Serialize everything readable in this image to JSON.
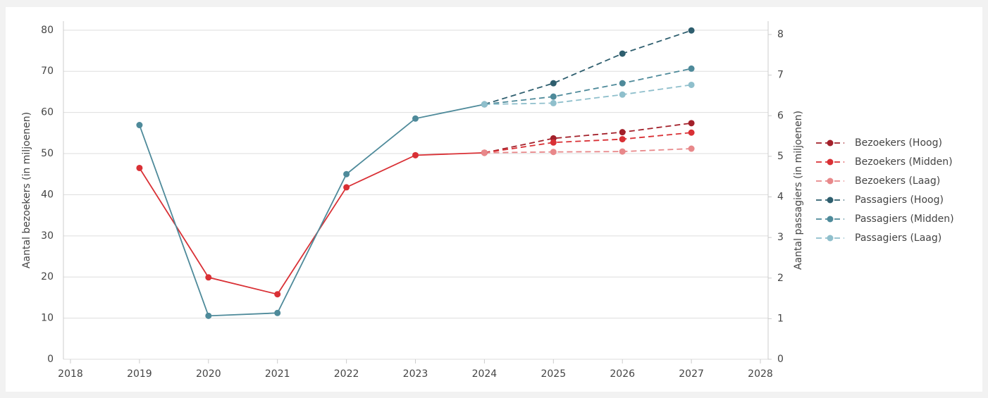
{
  "chart_data": {
    "type": "line",
    "y_label": "Aantal bezoekers (in miljoenen)",
    "y2_label": "Aantal passagiers (in miljoenen)",
    "x": [
      2019,
      2020,
      2021,
      2022,
      2023,
      2024,
      2025,
      2026,
      2027
    ],
    "xlim": [
      2018,
      2028
    ],
    "xticks": [
      2018,
      2019,
      2020,
      2021,
      2022,
      2023,
      2024,
      2025,
      2026,
      2027,
      2028
    ],
    "ylim": [
      0,
      82.2
    ],
    "yticks": [
      0,
      10,
      20,
      30,
      40,
      50,
      60,
      70,
      80
    ],
    "y2lim": [
      0,
      8.33
    ],
    "y2ticks": [
      0,
      1,
      2,
      3,
      4,
      5,
      6,
      7,
      8
    ],
    "grid": true,
    "legend": "right",
    "series": [
      {
        "color": "#d93035",
        "dashed": false,
        "axis": "y",
        "values": [
          46.5,
          19.9,
          15.8,
          41.8,
          49.6,
          50.2,
          null,
          null,
          null
        ]
      },
      {
        "color": "#4e8a9a",
        "dashed": false,
        "axis": "y2",
        "values": [
          5.77,
          1.07,
          1.14,
          4.56,
          5.93,
          6.28,
          null,
          null,
          null
        ]
      },
      {
        "name": "Bezoekers (Hoog)",
        "color": "#a3202a",
        "dashed": true,
        "axis": "y",
        "values": [
          null,
          null,
          null,
          null,
          null,
          50.2,
          53.7,
          55.2,
          57.4
        ]
      },
      {
        "name": "Bezoekers (Midden)",
        "color": "#d93035",
        "dashed": true,
        "axis": "y",
        "values": [
          null,
          null,
          null,
          null,
          null,
          50.2,
          52.7,
          53.5,
          55.1
        ]
      },
      {
        "name": "Bezoekers (Laag)",
        "color": "#e8888a",
        "dashed": true,
        "axis": "y",
        "values": [
          null,
          null,
          null,
          null,
          null,
          50.2,
          50.4,
          50.5,
          51.2
        ]
      },
      {
        "name": "Passagiers (Hoog)",
        "color": "#2e5e6e",
        "dashed": true,
        "axis": "y2",
        "values": [
          null,
          null,
          null,
          null,
          null,
          6.28,
          6.8,
          7.53,
          8.1
        ]
      },
      {
        "name": "Passagiers (Midden)",
        "color": "#4e8a9a",
        "dashed": true,
        "axis": "y2",
        "values": [
          null,
          null,
          null,
          null,
          null,
          6.28,
          6.47,
          6.8,
          7.16
        ]
      },
      {
        "name": "Passagiers (Laag)",
        "color": "#8fbfcc",
        "dashed": true,
        "axis": "y2",
        "values": [
          null,
          null,
          null,
          null,
          null,
          6.28,
          6.31,
          6.52,
          6.76
        ]
      }
    ]
  }
}
